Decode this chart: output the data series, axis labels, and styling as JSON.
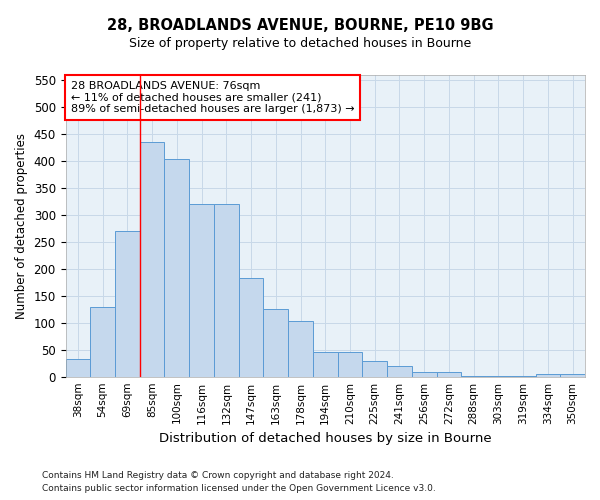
{
  "title1": "28, BROADLANDS AVENUE, BOURNE, PE10 9BG",
  "title2": "Size of property relative to detached houses in Bourne",
  "xlabel": "Distribution of detached houses by size in Bourne",
  "ylabel": "Number of detached properties",
  "categories": [
    "38sqm",
    "54sqm",
    "69sqm",
    "85sqm",
    "100sqm",
    "116sqm",
    "132sqm",
    "147sqm",
    "163sqm",
    "178sqm",
    "194sqm",
    "210sqm",
    "225sqm",
    "241sqm",
    "256sqm",
    "272sqm",
    "288sqm",
    "303sqm",
    "319sqm",
    "334sqm",
    "350sqm"
  ],
  "values": [
    33,
    130,
    270,
    435,
    405,
    320,
    320,
    183,
    125,
    103,
    46,
    46,
    30,
    20,
    8,
    8,
    2,
    2,
    2,
    5,
    5
  ],
  "bar_color": "#c5d8ed",
  "bar_edge_color": "#5b9bd5",
  "grid_color": "#c8d8e8",
  "background_color": "#e8f1f8",
  "annotation_line1": "28 BROADLANDS AVENUE: 76sqm",
  "annotation_line2": "← 11% of detached houses are smaller (241)",
  "annotation_line3": "89% of semi-detached houses are larger (1,873) →",
  "footer1": "Contains HM Land Registry data © Crown copyright and database right 2024.",
  "footer2": "Contains public sector information licensed under the Open Government Licence v3.0.",
  "ylim": [
    0,
    560
  ],
  "yticks": [
    0,
    50,
    100,
    150,
    200,
    250,
    300,
    350,
    400,
    450,
    500,
    550
  ],
  "red_line_index": 2.5
}
